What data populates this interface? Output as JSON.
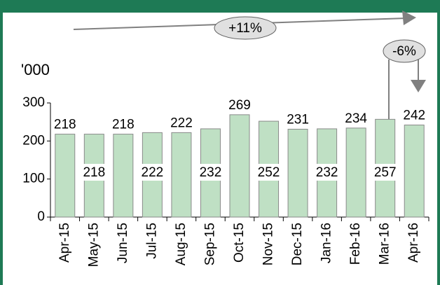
{
  "chart_data": {
    "type": "bar",
    "unit_label": "'000",
    "categories": [
      "Apr-15",
      "May-15",
      "Jun-15",
      "Jul-15",
      "Aug-15",
      "Sep-15",
      "Oct-15",
      "Nov-15",
      "Dec-15",
      "Jan-16",
      "Feb-16",
      "Mar-16",
      "Apr-16"
    ],
    "values": [
      218,
      218,
      218,
      222,
      222,
      232,
      269,
      252,
      231,
      232,
      234,
      257,
      242
    ],
    "color": "#bfe0c4",
    "ylim": [
      0,
      300
    ],
    "yticks": [
      0,
      100,
      200,
      300
    ],
    "annotations": [
      "+11%",
      "-6%"
    ]
  }
}
